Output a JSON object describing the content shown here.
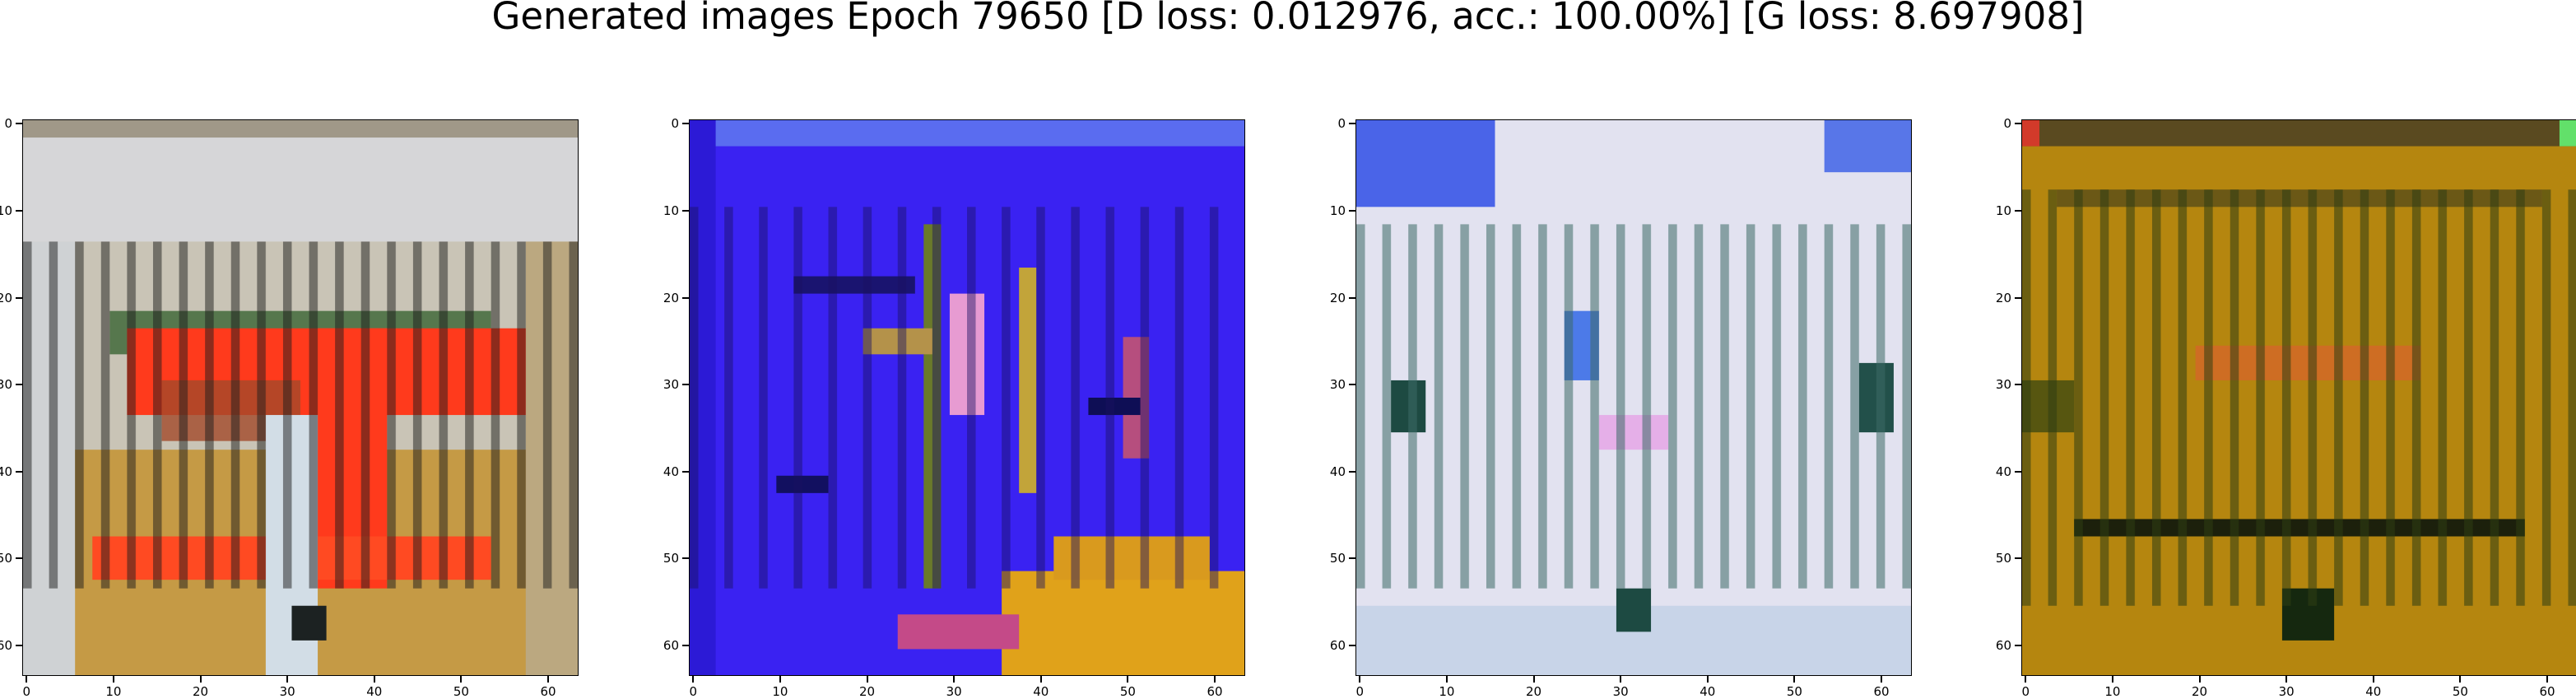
{
  "figure": {
    "title": "Generated images Epoch 79650 [D loss: 0.012976, acc.: 100.00%] [G loss: 8.697908]",
    "x_ticks": [
      "0",
      "10",
      "20",
      "30",
      "40",
      "50",
      "60"
    ],
    "y_ticks": [
      "0",
      "10",
      "20",
      "30",
      "40",
      "50",
      "60"
    ],
    "image_size": 64
  },
  "panels": [
    {
      "dominant_color": "#c9c4b6",
      "accent_color": "#ff3a1c",
      "description_icon": "generated-image"
    },
    {
      "dominant_color": "#3a22f2",
      "accent_color": "#e0a21a",
      "description_icon": "generated-image"
    },
    {
      "dominant_color": "#e2e2f0",
      "accent_color": "#1d4a42",
      "description_icon": "generated-image"
    },
    {
      "dominant_color": "#b5860f",
      "accent_color": "#2f3d12",
      "description_icon": "generated-image"
    }
  ]
}
